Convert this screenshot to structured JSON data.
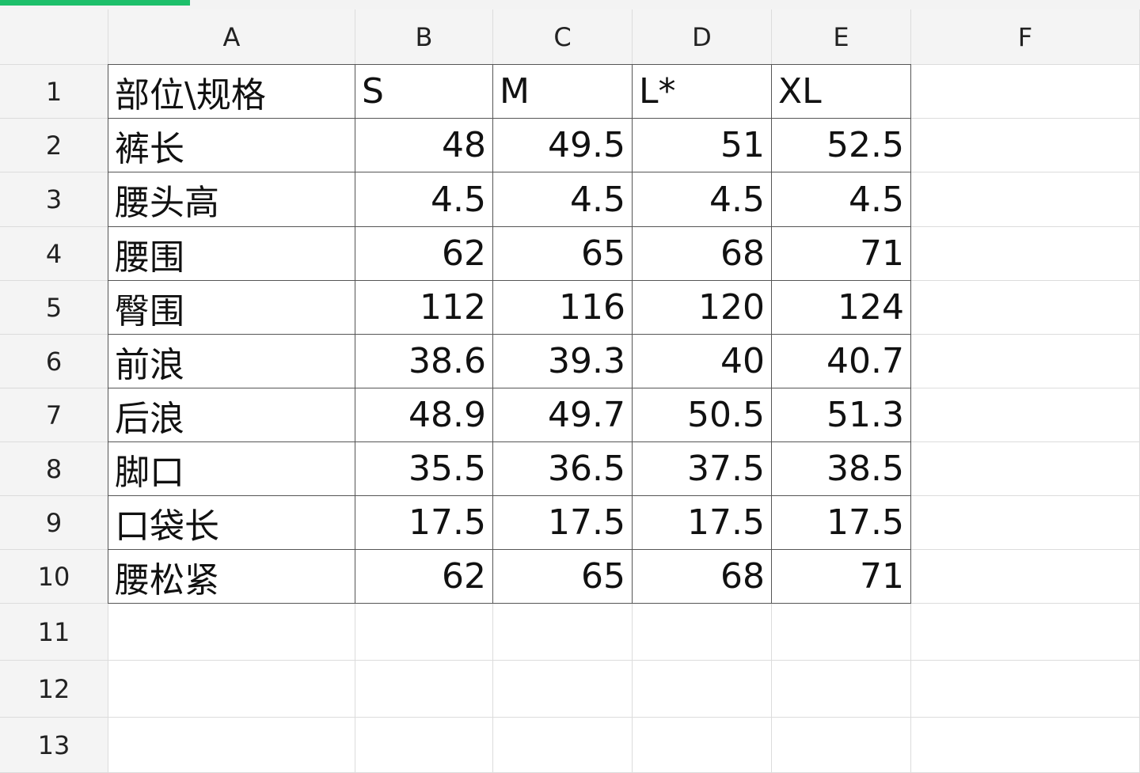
{
  "progress_color": "#1dbf6a",
  "columns": [
    "A",
    "B",
    "C",
    "D",
    "E",
    "F"
  ],
  "rows": [
    "1",
    "2",
    "3",
    "4",
    "5",
    "6",
    "7",
    "8",
    "9",
    "10",
    "11",
    "12",
    "13"
  ],
  "table": [
    [
      "部位\\规格",
      "S",
      "M",
      "L*",
      "XL"
    ],
    [
      "裤长",
      "48",
      "49.5",
      "51",
      "52.5"
    ],
    [
      "腰头高",
      "4.5",
      "4.5",
      "4.5",
      "4.5"
    ],
    [
      "腰围",
      "62",
      "65",
      "68",
      "71"
    ],
    [
      "臀围",
      "112",
      "116",
      "120",
      "124"
    ],
    [
      "前浪",
      "38.6",
      "39.3",
      "40",
      "40.7"
    ],
    [
      "后浪",
      "48.9",
      "49.7",
      "50.5",
      "51.3"
    ],
    [
      "脚口",
      "35.5",
      "36.5",
      "37.5",
      "38.5"
    ],
    [
      "口袋长",
      "17.5",
      "17.5",
      "17.5",
      "17.5"
    ],
    [
      "腰松紧",
      "62",
      "65",
      "68",
      "71"
    ]
  ]
}
